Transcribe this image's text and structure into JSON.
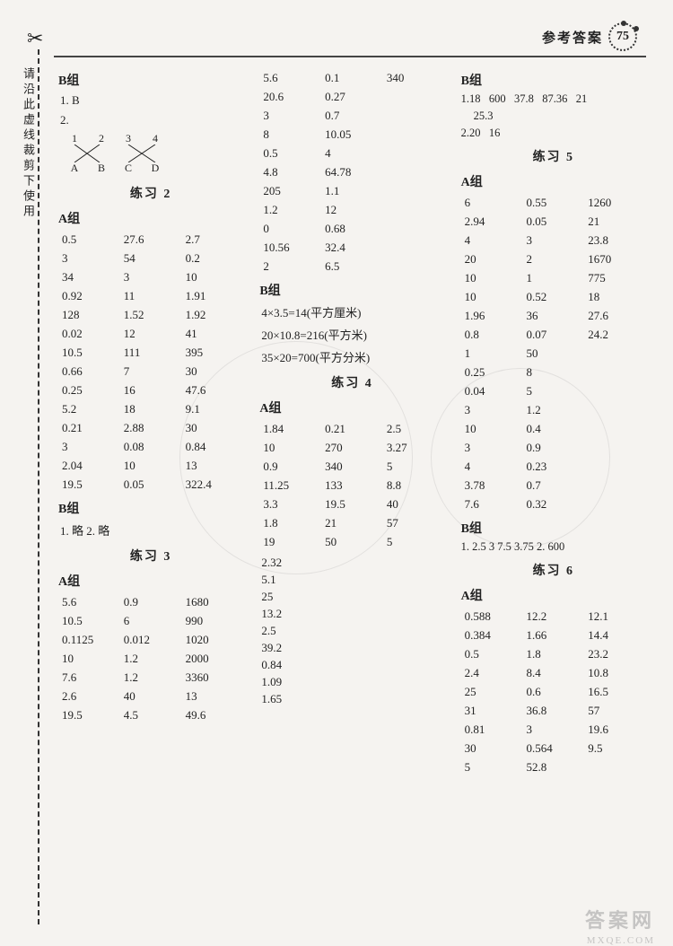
{
  "header": {
    "title": "参考答案",
    "page": "75"
  },
  "sideText": "请沿此虚线裁剪下使用",
  "col1": {
    "groupB": "B组",
    "q1": "1. B",
    "q2": "2.",
    "crossTop": [
      "1",
      "2",
      "3",
      "4"
    ],
    "crossBot": [
      "A",
      "B",
      "C",
      "D"
    ],
    "ex2": "练习 2",
    "groupA": "A组",
    "ex2A": [
      [
        "0.5",
        "27.6",
        "2.7"
      ],
      [
        "3",
        "54",
        "0.2"
      ],
      [
        "34",
        "3",
        "10"
      ],
      [
        "0.92",
        "11",
        "1.91"
      ],
      [
        "128",
        "1.52",
        "1.92"
      ],
      [
        "0.02",
        "12",
        "41"
      ],
      [
        "10.5",
        "111",
        "395"
      ],
      [
        "0.66",
        "7",
        "30"
      ],
      [
        "0.25",
        "16",
        "47.6"
      ],
      [
        "5.2",
        "18",
        "9.1"
      ],
      [
        "0.21",
        "2.88",
        "30"
      ],
      [
        "3",
        "0.08",
        "0.84"
      ],
      [
        "2.04",
        "10",
        "13"
      ],
      [
        "19.5",
        "0.05",
        "322.4"
      ]
    ],
    "ex2B": "B组",
    "ex2Bans": "1. 略   2. 略",
    "ex3": "练习 3",
    "ex3A": "A组",
    "ex3Arows": [
      [
        "5.6",
        "0.9",
        "1680"
      ],
      [
        "10.5",
        "6",
        "990"
      ],
      [
        "0.1125",
        "0.012",
        "1020"
      ],
      [
        "10",
        "1.2",
        "2000"
      ],
      [
        "7.6",
        "1.2",
        "3360"
      ],
      [
        "2.6",
        "40",
        "13"
      ],
      [
        "19.5",
        "4.5",
        "49.6"
      ]
    ]
  },
  "col2": {
    "topPairs": [
      [
        "5.6",
        "0.1",
        "340"
      ],
      [
        "20.6",
        "0.27",
        ""
      ],
      [
        "3",
        "0.7",
        ""
      ],
      [
        "8",
        "10.05",
        ""
      ],
      [
        "0.5",
        "4",
        ""
      ],
      [
        "4.8",
        "64.78",
        ""
      ],
      [
        "205",
        "1.1",
        ""
      ],
      [
        "1.2",
        "12",
        ""
      ],
      [
        "0",
        "0.68",
        ""
      ],
      [
        "10.56",
        "32.4",
        ""
      ],
      [
        "2",
        "6.5",
        ""
      ]
    ],
    "groupB": "B组",
    "bLines": [
      "4×3.5=14(平方厘米)",
      "20×10.8=216(平方米)",
      "35×20=700(平方分米)"
    ],
    "ex4": "练习 4",
    "ex4A": "A组",
    "ex4Arows": [
      [
        "1.84",
        "0.21",
        "2.5"
      ],
      [
        "10",
        "270",
        "3.27"
      ],
      [
        "0.9",
        "340",
        "5"
      ],
      [
        "11.25",
        "133",
        "8.8"
      ],
      [
        "3.3",
        "19.5",
        "40"
      ],
      [
        "1.8",
        "21",
        "57"
      ],
      [
        "19",
        "50",
        "5"
      ]
    ],
    "singles": [
      "2.32",
      "5.1",
      "25",
      "13.2",
      "2.5",
      "39.2",
      "0.84",
      "1.09",
      "1.65"
    ]
  },
  "col3": {
    "groupB": "B组",
    "bLine1": [
      "1.18",
      "600",
      "37.8",
      "87.36",
      "21"
    ],
    "bLine1b": "25.3",
    "bLine2": [
      "2.20",
      "16"
    ],
    "ex5": "练习 5",
    "ex5A": "A组",
    "ex5Arows": [
      [
        "6",
        "0.55",
        "1260"
      ],
      [
        "2.94",
        "0.05",
        "21"
      ],
      [
        "4",
        "3",
        "23.8"
      ],
      [
        "20",
        "2",
        "1670"
      ],
      [
        "10",
        "1",
        "775"
      ],
      [
        "10",
        "0.52",
        "18"
      ],
      [
        "1.96",
        "36",
        "27.6"
      ],
      [
        "0.8",
        "0.07",
        "24.2"
      ],
      [
        "1",
        "50",
        ""
      ],
      [
        "0.25",
        "8",
        ""
      ],
      [
        "0.04",
        "5",
        ""
      ],
      [
        "3",
        "1.2",
        ""
      ],
      [
        "10",
        "0.4",
        ""
      ],
      [
        "3",
        "0.9",
        ""
      ],
      [
        "4",
        "0.23",
        ""
      ],
      [
        "3.78",
        "0.7",
        ""
      ],
      [
        "7.6",
        "0.32",
        ""
      ]
    ],
    "ex5B": "B组",
    "ex5Bline": "1. 2.5  3  7.5  3.75  2. 600",
    "ex6": "练习 6",
    "ex6A": "A组",
    "ex6Arows": [
      [
        "0.588",
        "12.2",
        "12.1"
      ],
      [
        "0.384",
        "1.66",
        "14.4"
      ],
      [
        "0.5",
        "1.8",
        "23.2"
      ],
      [
        "2.4",
        "8.4",
        "10.8"
      ],
      [
        "25",
        "0.6",
        "16.5"
      ],
      [
        "31",
        "36.8",
        "57"
      ],
      [
        "0.81",
        "3",
        "19.6"
      ],
      [
        "30",
        "0.564",
        "9.5"
      ],
      [
        "5",
        "52.8",
        ""
      ]
    ]
  },
  "watermark": "答案网",
  "watermark2": "MXQE.COM"
}
